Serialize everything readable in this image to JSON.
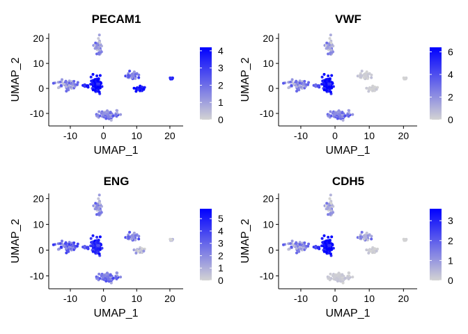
{
  "figure": {
    "colors": {
      "low": "#d3d3d3",
      "high": "#0000ff"
    },
    "point_size": 2
  },
  "chart_data": [
    {
      "type": "scatter",
      "title": "PECAM1",
      "xlabel": "UMAP_1",
      "ylabel": "UMAP_2",
      "xlim": [
        -16.5,
        24
      ],
      "ylim": [
        -15,
        22
      ],
      "xticks": [
        -10,
        0,
        10,
        20
      ],
      "yticks": [
        -10,
        0,
        10,
        20
      ],
      "legend": {
        "position": "right",
        "range": [
          0,
          4.2
        ],
        "ticks": [
          0,
          1,
          2,
          3,
          4
        ]
      },
      "clusters": [
        {
          "name": "top",
          "x": -1.5,
          "y": 16.5,
          "spread": [
            1.2,
            3.5
          ],
          "n": 40,
          "expr": 1.2
        },
        {
          "name": "left",
          "x": -11,
          "y": 1.5,
          "spread": [
            3.0,
            2.0
          ],
          "n": 55,
          "expr": 1.4
        },
        {
          "name": "center-small",
          "x": -5.5,
          "y": 1,
          "spread": [
            0.8,
            0.5
          ],
          "n": 15,
          "expr": 3.5
        },
        {
          "name": "center",
          "x": -2,
          "y": 1.5,
          "spread": [
            1.6,
            3.0
          ],
          "n": 90,
          "expr": 3.8
        },
        {
          "name": "bottom",
          "x": 1,
          "y": -10.5,
          "spread": [
            3.5,
            1.8
          ],
          "n": 90,
          "expr": 1.6
        },
        {
          "name": "right-upper",
          "x": 8.5,
          "y": 5,
          "spread": [
            2.0,
            1.5
          ],
          "n": 30,
          "expr": 2.0
        },
        {
          "name": "right-lower",
          "x": 11,
          "y": 0,
          "spread": [
            1.2,
            1.0
          ],
          "n": 35,
          "expr": 4.0
        },
        {
          "name": "far-right",
          "x": 20.5,
          "y": 4,
          "spread": [
            0.4,
            0.6
          ],
          "n": 8,
          "expr": 4.0
        }
      ]
    },
    {
      "type": "scatter",
      "title": "VWF",
      "xlabel": "UMAP_1",
      "ylabel": "UMAP_2",
      "xlim": [
        -16.5,
        24
      ],
      "ylim": [
        -15,
        22
      ],
      "xticks": [
        -10,
        0,
        10,
        20
      ],
      "yticks": [
        -10,
        0,
        10,
        20
      ],
      "legend": {
        "position": "right",
        "range": [
          0,
          6.4
        ],
        "ticks": [
          0,
          2,
          4,
          6
        ]
      },
      "clusters": [
        {
          "name": "top",
          "x": -1.5,
          "y": 16.5,
          "spread": [
            1.2,
            3.5
          ],
          "n": 40,
          "expr": 1.5
        },
        {
          "name": "left",
          "x": -11,
          "y": 1.5,
          "spread": [
            3.0,
            2.0
          ],
          "n": 55,
          "expr": 2.2
        },
        {
          "name": "center-small",
          "x": -5.5,
          "y": 1,
          "spread": [
            0.8,
            0.5
          ],
          "n": 15,
          "expr": 3.5
        },
        {
          "name": "center",
          "x": -2,
          "y": 1.5,
          "spread": [
            1.6,
            3.0
          ],
          "n": 90,
          "expr": 5.8
        },
        {
          "name": "bottom",
          "x": 1,
          "y": -10.5,
          "spread": [
            3.5,
            1.8
          ],
          "n": 90,
          "expr": 2.6
        },
        {
          "name": "right-upper",
          "x": 8.5,
          "y": 5,
          "spread": [
            2.0,
            1.5
          ],
          "n": 30,
          "expr": 0.3
        },
        {
          "name": "right-lower",
          "x": 11,
          "y": 0,
          "spread": [
            1.2,
            1.0
          ],
          "n": 35,
          "expr": 0.1
        },
        {
          "name": "far-right",
          "x": 20.5,
          "y": 4,
          "spread": [
            0.4,
            0.6
          ],
          "n": 8,
          "expr": 0.1
        }
      ]
    },
    {
      "type": "scatter",
      "title": "ENG",
      "xlabel": "UMAP_1",
      "ylabel": "UMAP_2",
      "xlim": [
        -16.5,
        24
      ],
      "ylim": [
        -15,
        22
      ],
      "xticks": [
        -10,
        0,
        10,
        20
      ],
      "yticks": [
        -10,
        0,
        10,
        20
      ],
      "legend": {
        "position": "right",
        "range": [
          0,
          5.8
        ],
        "ticks": [
          0,
          1,
          2,
          3,
          4,
          5
        ]
      },
      "clusters": [
        {
          "name": "top",
          "x": -1.5,
          "y": 16.5,
          "spread": [
            1.2,
            3.5
          ],
          "n": 40,
          "expr": 1.8
        },
        {
          "name": "left",
          "x": -11,
          "y": 1.5,
          "spread": [
            3.0,
            2.0
          ],
          "n": 55,
          "expr": 3.0
        },
        {
          "name": "center-small",
          "x": -5.5,
          "y": 1,
          "spread": [
            0.8,
            0.5
          ],
          "n": 15,
          "expr": 3.5
        },
        {
          "name": "center",
          "x": -2,
          "y": 1.5,
          "spread": [
            1.6,
            3.0
          ],
          "n": 90,
          "expr": 4.5
        },
        {
          "name": "bottom",
          "x": 1,
          "y": -10.5,
          "spread": [
            3.5,
            1.8
          ],
          "n": 90,
          "expr": 2.6
        },
        {
          "name": "right-upper",
          "x": 8.5,
          "y": 5,
          "spread": [
            2.0,
            1.5
          ],
          "n": 30,
          "expr": 2.5
        },
        {
          "name": "right-lower",
          "x": 11,
          "y": 0,
          "spread": [
            1.2,
            1.0
          ],
          "n": 35,
          "expr": 0.5
        },
        {
          "name": "far-right",
          "x": 20.5,
          "y": 4,
          "spread": [
            0.4,
            0.6
          ],
          "n": 8,
          "expr": 0.8
        }
      ]
    },
    {
      "type": "scatter",
      "title": "CDH5",
      "xlabel": "UMAP_1",
      "ylabel": "UMAP_2",
      "xlim": [
        -16.5,
        24
      ],
      "ylim": [
        -15,
        22
      ],
      "xticks": [
        -10,
        0,
        10,
        20
      ],
      "yticks": [
        -10,
        0,
        10,
        20
      ],
      "legend": {
        "position": "right",
        "range": [
          0,
          3.6
        ],
        "ticks": [
          0,
          1,
          2,
          3
        ]
      },
      "clusters": [
        {
          "name": "top",
          "x": -1.5,
          "y": 16.5,
          "spread": [
            1.2,
            3.5
          ],
          "n": 40,
          "expr": 0.7
        },
        {
          "name": "left",
          "x": -11,
          "y": 1.5,
          "spread": [
            3.0,
            2.0
          ],
          "n": 55,
          "expr": 1.2
        },
        {
          "name": "center-small",
          "x": -5.5,
          "y": 1,
          "spread": [
            0.8,
            0.5
          ],
          "n": 15,
          "expr": 2.6
        },
        {
          "name": "center",
          "x": -2,
          "y": 1.5,
          "spread": [
            1.6,
            3.0
          ],
          "n": 90,
          "expr": 3.3
        },
        {
          "name": "bottom",
          "x": 1,
          "y": -10.5,
          "spread": [
            3.5,
            1.8
          ],
          "n": 90,
          "expr": 0.15
        },
        {
          "name": "right-upper",
          "x": 8.5,
          "y": 5,
          "spread": [
            2.0,
            1.5
          ],
          "n": 30,
          "expr": 1.0
        },
        {
          "name": "right-lower",
          "x": 11,
          "y": 0,
          "spread": [
            1.2,
            1.0
          ],
          "n": 35,
          "expr": 0.1
        },
        {
          "name": "far-right",
          "x": 20.5,
          "y": 4,
          "spread": [
            0.4,
            0.6
          ],
          "n": 8,
          "expr": 0.05
        }
      ]
    }
  ]
}
